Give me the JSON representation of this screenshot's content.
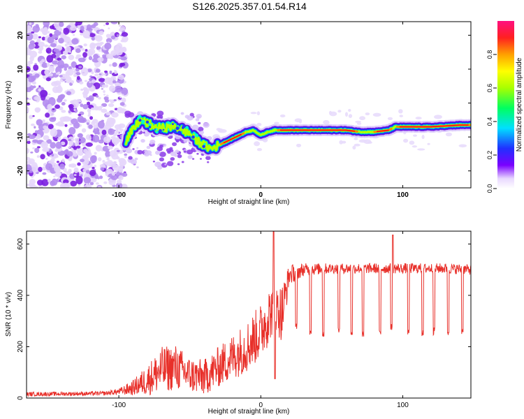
{
  "title": "S126.2025.357.01.54.R14",
  "chart_data": [
    {
      "type": "heatmap",
      "xlabel": "Height of straight line (km)",
      "ylabel": "Frequency (Hz)",
      "xlim": [
        -165,
        148
      ],
      "ylim": [
        -25,
        24
      ],
      "x_ticks": [
        -100,
        0,
        100
      ],
      "y_ticks": [
        -20,
        -10,
        0,
        10,
        20
      ],
      "colorbar": {
        "label": "Normalized spectral amplitude",
        "range": [
          0.0,
          1.0
        ],
        "ticks": [
          0.0,
          0.2,
          0.4,
          0.6,
          0.8
        ],
        "tick_labels": [
          "0.0",
          "0.2",
          "0.4",
          "0.6",
          "0.8"
        ]
      },
      "ridge_frequency": {
        "x": [
          -95,
          -90,
          -85,
          -80,
          -75,
          -70,
          -65,
          -60,
          -55,
          -50,
          -45,
          -40,
          -35,
          -30,
          -25,
          -20,
          -15,
          -10,
          -5,
          0,
          5,
          10,
          20,
          40,
          60,
          70,
          80,
          90,
          95,
          100,
          120,
          140,
          148
        ],
        "y": [
          -11,
          -8,
          -5,
          -6,
          -7,
          -7.5,
          -7,
          -7,
          -8,
          -9,
          -11,
          -12.5,
          -13.5,
          -12.5,
          -11.5,
          -10.5,
          -9.5,
          -8.5,
          -8,
          -9.5,
          -8.5,
          -8,
          -8,
          -8,
          -8,
          -8.5,
          -8.5,
          -8,
          -7,
          -7,
          -7,
          -6.5,
          -6.5
        ]
      },
      "noise_region_x": [
        -165,
        -95
      ]
    },
    {
      "type": "line",
      "xlabel": "Height of straight line (km)",
      "ylabel": "SNR (10 * v/v)",
      "xlim": [
        -165,
        148
      ],
      "ylim": [
        0,
        650
      ],
      "x_ticks": [
        -100,
        0,
        100
      ],
      "y_ticks": [
        0,
        200,
        400,
        600
      ],
      "series": [
        {
          "name": "SNR",
          "color": "#e8302a",
          "envelope_x": [
            -165,
            -110,
            -100,
            -90,
            -80,
            -70,
            -60,
            -50,
            -40,
            -30,
            -20,
            -10,
            0,
            5,
            10,
            15,
            20,
            30,
            50,
            80,
            100,
            130,
            148
          ],
          "envelope_mean": [
            15,
            18,
            25,
            40,
            70,
            110,
            120,
            90,
            80,
            120,
            160,
            200,
            260,
            320,
            350,
            330,
            480,
            500,
            505,
            505,
            505,
            505,
            500
          ],
          "envelope_amp": [
            8,
            8,
            12,
            30,
            60,
            90,
            90,
            70,
            70,
            80,
            90,
            100,
            110,
            120,
            80,
            120,
            40,
            25,
            20,
            20,
            20,
            20,
            20
          ],
          "spikes_x": [
            9,
            93
          ],
          "spikes_y": [
            650,
            635
          ],
          "dips_x": [
            25,
            35,
            44,
            55,
            64,
            72,
            84,
            92,
            104,
            114,
            122,
            132,
            142
          ],
          "dips_y": [
            280,
            260,
            250,
            265,
            255,
            245,
            250,
            280,
            255,
            250,
            260,
            255,
            260
          ]
        }
      ]
    }
  ]
}
